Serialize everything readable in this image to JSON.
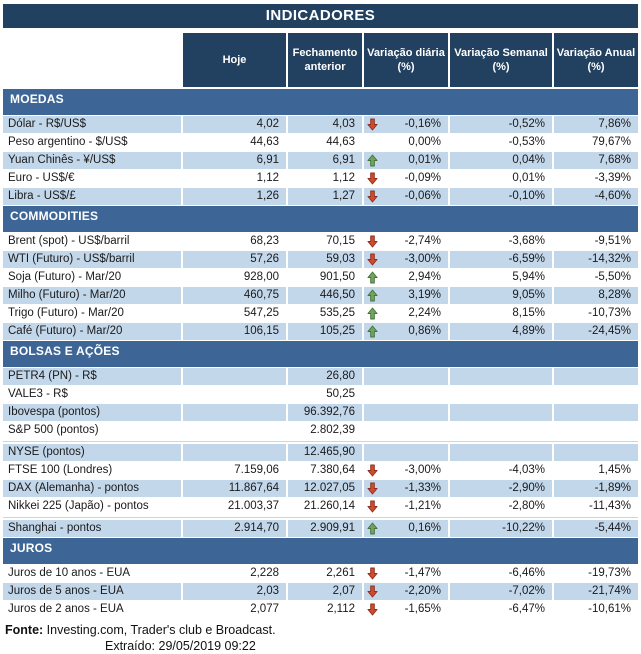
{
  "title": "INDICADORES",
  "colors": {
    "title_navy": "#22405F",
    "section_blue": "#3D6697",
    "stripe_blue": "#C3D7EB",
    "arrow_up_fill": "#6FA45F",
    "arrow_up_border": "#45703A",
    "arrow_down_fill": "#CE4B2E",
    "arrow_down_border": "#8E2F1E"
  },
  "columns": [
    {
      "line1": "Hoje",
      "line2": ""
    },
    {
      "line1": "Fechamento",
      "line2": "anterior"
    },
    {
      "line1": "Variação diária",
      "line2": "(%)"
    },
    {
      "line1": "Variação Semanal",
      "line2": "(%)"
    },
    {
      "line1": "Variação Anual",
      "line2": "(%)"
    }
  ],
  "sections": [
    {
      "id": "moedas",
      "label": "MOEDAS",
      "rows": [
        {
          "label": "Dólar - R$/US$",
          "hoje": "4,02",
          "fechamento": "4,03",
          "arrow": "down",
          "var_diaria": "-0,16%",
          "var_semanal": "-0,52%",
          "var_anual": "7,86%"
        },
        {
          "label": "Peso argentino - $/US$",
          "hoje": "44,63",
          "fechamento": "44,63",
          "arrow": "none",
          "var_diaria": "0,00%",
          "var_semanal": "-0,53%",
          "var_anual": "79,67%"
        },
        {
          "label": "Yuan Chinês - ¥/US$",
          "hoje": "6,91",
          "fechamento": "6,91",
          "arrow": "up",
          "var_diaria": "0,01%",
          "var_semanal": "0,04%",
          "var_anual": "7,68%"
        },
        {
          "label": "Euro - US$/€",
          "hoje": "1,12",
          "fechamento": "1,12",
          "arrow": "down",
          "var_diaria": "-0,09%",
          "var_semanal": "0,01%",
          "var_anual": "-3,39%"
        },
        {
          "label": "Libra - US$/£",
          "hoje": "1,26",
          "fechamento": "1,27",
          "arrow": "down",
          "var_diaria": "-0,06%",
          "var_semanal": "-0,10%",
          "var_anual": "-4,60%"
        }
      ]
    },
    {
      "id": "commodities",
      "label": "COMMODITIES",
      "rows": [
        {
          "label": "Brent (spot) - US$/barril",
          "hoje": "68,23",
          "fechamento": "70,15",
          "arrow": "down",
          "var_diaria": "-2,74%",
          "var_semanal": "-3,68%",
          "var_anual": "-9,51%"
        },
        {
          "label": "WTI (Futuro) - US$/barril",
          "hoje": "57,26",
          "fechamento": "59,03",
          "arrow": "down",
          "var_diaria": "-3,00%",
          "var_semanal": "-6,59%",
          "var_anual": "-14,32%"
        },
        {
          "label": "Soja (Futuro) - Mar/20",
          "hoje": "928,00",
          "fechamento": "901,50",
          "arrow": "up",
          "var_diaria": "2,94%",
          "var_semanal": "5,94%",
          "var_anual": "-5,50%"
        },
        {
          "label": "Milho (Futuro) - Mar/20",
          "hoje": "460,75",
          "fechamento": "446,50",
          "arrow": "up",
          "var_diaria": "3,19%",
          "var_semanal": "9,05%",
          "var_anual": "8,28%"
        },
        {
          "label": "Trigo (Futuro) - Mar/20",
          "hoje": "547,25",
          "fechamento": "535,25",
          "arrow": "up",
          "var_diaria": "2,24%",
          "var_semanal": "8,15%",
          "var_anual": "-10,73%"
        },
        {
          "label": "Café (Futuro) - Mar/20",
          "hoje": "106,15",
          "fechamento": "105,25",
          "arrow": "up",
          "var_diaria": "0,86%",
          "var_semanal": "4,89%",
          "var_anual": "-24,45%"
        }
      ]
    },
    {
      "id": "bolsas-e-acoes",
      "label": "BOLSAS E AÇÕES",
      "rows": [
        {
          "label": "PETR4 (PN) - R$",
          "hoje": "",
          "fechamento": "26,80",
          "arrow": "none",
          "var_diaria": "",
          "var_semanal": "",
          "var_anual": ""
        },
        {
          "label": "VALE3 - R$",
          "hoje": "",
          "fechamento": "50,25",
          "arrow": "none",
          "var_diaria": "",
          "var_semanal": "",
          "var_anual": ""
        },
        {
          "label": "Ibovespa (pontos)",
          "hoje": "",
          "fechamento": "96.392,76",
          "arrow": "none",
          "var_diaria": "",
          "var_semanal": "",
          "var_anual": ""
        },
        {
          "label": "S&P 500 (pontos)",
          "hoje": "",
          "fechamento": "2.802,39",
          "arrow": "none",
          "var_diaria": "",
          "var_semanal": "",
          "var_anual": ""
        },
        {
          "label": "NYSE (pontos)",
          "hoje": "",
          "fechamento": "12.465,90",
          "arrow": "none",
          "var_diaria": "",
          "var_semanal": "",
          "var_anual": "",
          "gap_before": true
        },
        {
          "label": "FTSE 100 (Londres)",
          "hoje": "7.159,06",
          "fechamento": "7.380,64",
          "arrow": "down",
          "var_diaria": "-3,00%",
          "var_semanal": "-4,03%",
          "var_anual": "1,45%"
        },
        {
          "label": "DAX (Alemanha) - pontos",
          "hoje": "11.867,64",
          "fechamento": "12.027,05",
          "arrow": "down",
          "var_diaria": "-1,33%",
          "var_semanal": "-2,90%",
          "var_anual": "-1,89%"
        },
        {
          "label": "Nikkei 225 (Japão) - pontos",
          "hoje": "21.003,37",
          "fechamento": "21.260,14",
          "arrow": "down",
          "var_diaria": "-1,21%",
          "var_semanal": "-2,80%",
          "var_anual": "-11,43%"
        },
        {
          "label": "Shanghai - pontos",
          "hoje": "2.914,70",
          "fechamento": "2.909,91",
          "arrow": "up",
          "var_diaria": "0,16%",
          "var_semanal": "-10,22%",
          "var_anual": "-5,44%",
          "gap_before": true
        }
      ]
    },
    {
      "id": "juros",
      "label": "JUROS",
      "rows": [
        {
          "label": "Juros de 10 anos - EUA",
          "hoje": "2,228",
          "fechamento": "2,261",
          "arrow": "down",
          "var_diaria": "-1,47%",
          "var_semanal": "-6,46%",
          "var_anual": "-19,73%"
        },
        {
          "label": "Juros de 5 anos - EUA",
          "hoje": "2,03",
          "fechamento": "2,07",
          "arrow": "down",
          "var_diaria": "-2,20%",
          "var_semanal": "-7,02%",
          "var_anual": "-21,74%"
        },
        {
          "label": "Juros de 2 anos - EUA",
          "hoje": "2,077",
          "fechamento": "2,112",
          "arrow": "down",
          "var_diaria": "-1,65%",
          "var_semanal": "-6,47%",
          "var_anual": "-10,61%"
        }
      ]
    }
  ],
  "footer": {
    "fonte_label": "Fonte:",
    "fonte_rest": " Investing.com, Trader's club e Broadcast.",
    "extraido": "Extraído: 29/05/2019 09:22"
  }
}
